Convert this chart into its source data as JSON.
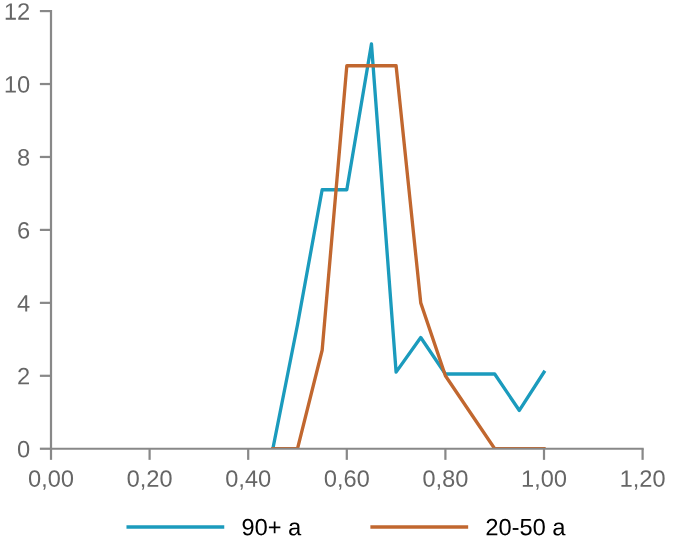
{
  "chart_data": {
    "type": "line",
    "x": [
      0.45,
      0.5,
      0.55,
      0.6,
      0.65,
      0.7,
      0.75,
      0.8,
      0.85,
      0.9,
      0.95,
      1.0
    ],
    "series": [
      {
        "name": "90+ a",
        "color": "#1b9bbd",
        "values": [
          0,
          3.4,
          7.1,
          7.1,
          11.1,
          2.1,
          3.05,
          2.05,
          2.05,
          2.05,
          1.05,
          2.1
        ]
      },
      {
        "name": "20-50 a",
        "color": "#c1672f",
        "values": [
          0,
          0,
          2.7,
          10.5,
          10.5,
          10.5,
          4.0,
          2.0,
          1.0,
          0,
          0,
          0
        ]
      }
    ],
    "xlim": [
      0,
      1.2
    ],
    "xticks": [
      {
        "value": 0,
        "label": "0,00"
      },
      {
        "value": 0.2,
        "label": "0,20"
      },
      {
        "value": 0.4,
        "label": "0,40"
      },
      {
        "value": 0.6,
        "label": "0,60"
      },
      {
        "value": 0.8,
        "label": "0,80"
      },
      {
        "value": 1.0,
        "label": "1,00"
      },
      {
        "value": 1.2,
        "label": "1,20"
      }
    ],
    "ylim": [
      0,
      12
    ],
    "yticks": [
      0,
      2,
      4,
      6,
      8,
      10,
      12
    ],
    "grid": false,
    "legend": "bottom",
    "marker": "none",
    "line_style": "solid"
  }
}
